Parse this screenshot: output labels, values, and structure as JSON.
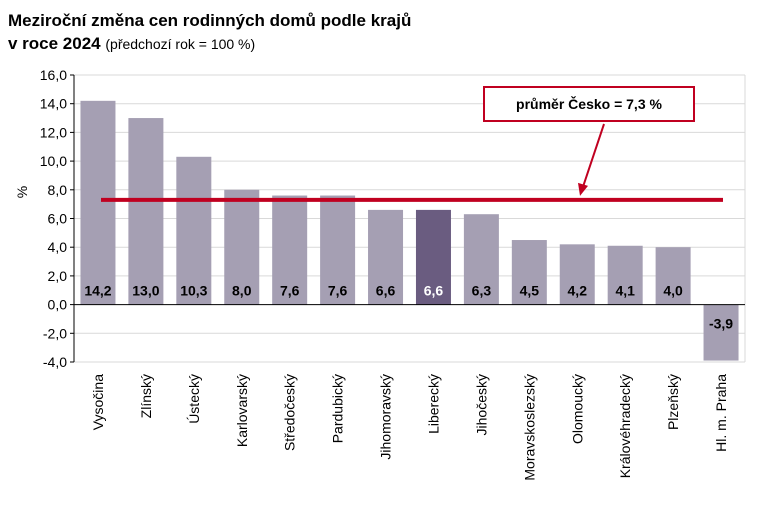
{
  "title": {
    "line1": "Meziroční změna cen rodinných domů podle krajů",
    "line2": "v roce 2024",
    "subtitle": "(předchozí rok = 100 %)"
  },
  "chart_data": {
    "type": "bar",
    "ylabel": "%",
    "ylim": [
      -4,
      16
    ],
    "yticks": [
      "16,0",
      "14,0",
      "12,0",
      "10,0",
      "8,0",
      "6,0",
      "4,0",
      "2,0",
      "0,0",
      "-2,0",
      "-4,0"
    ],
    "ytick_values": [
      16,
      14,
      12,
      10,
      8,
      6,
      4,
      2,
      0,
      -2,
      -4
    ],
    "categories": [
      "Vysočina",
      "Zlínský",
      "Ústecký",
      "Karlovarský",
      "Středočeský",
      "Pardubický",
      "Jihomoravský",
      "Liberecký",
      "Jihočeský",
      "Moravskoslezský",
      "Olomoucký",
      "Královéhradecký",
      "Plzeňský",
      "Hl. m. Praha"
    ],
    "values": [
      14.2,
      13.0,
      10.3,
      8.0,
      7.6,
      7.6,
      6.6,
      6.6,
      6.3,
      4.5,
      4.2,
      4.1,
      4.0,
      -3.9
    ],
    "value_labels": [
      "14,2",
      "13,0",
      "10,3",
      "8,0",
      "7,6",
      "7,6",
      "6,6",
      "6,6",
      "6,3",
      "4,5",
      "4,2",
      "4,1",
      "4,0",
      "-3,9"
    ],
    "highlight_index": 7,
    "reference_line": {
      "value": 7.3,
      "label": "průměr Česko = 7,3 %"
    },
    "grid": true,
    "colors": {
      "bar": "#a59fb3",
      "highlight": "#6a5c80",
      "line": "#c00020",
      "grid": "#d9d9d9"
    }
  }
}
